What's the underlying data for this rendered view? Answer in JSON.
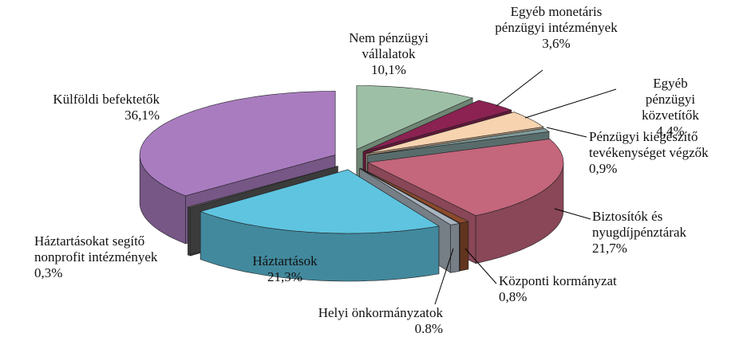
{
  "chart_data": {
    "type": "pie3d",
    "categories": [
      "Nem pénzügyi\nvállalatok",
      "Egyéb monetáris\npénzügyi intézmények",
      "Egyéb pénzügyi\nközvetítők",
      "Pénzügyi kiegészítő\ntevékenységet végzők",
      "Biztosítók és\nnyugdíjpénztárak",
      "Központi kormányzat",
      "Helyi önkormányzatok",
      "Háztartások",
      "Háztartásokat segítő\nnonprofit intézmények",
      "Külföldi befektetők"
    ],
    "values": [
      10.1,
      3.6,
      4.4,
      0.9,
      21.7,
      0.8,
      0.8,
      21.3,
      0.3,
      36.1
    ],
    "value_labels": [
      "10,1%",
      "3,6%",
      "4,4%",
      "0,9%",
      "21,7%",
      "0,8%",
      "0.8%",
      "21,3%",
      "0,3%",
      "36,1%"
    ],
    "colors": [
      "#9dbfa6",
      "#8b2252",
      "#f7d3b0",
      "#7f9a9a",
      "#c4667c",
      "#8b4a2b",
      "#a9b4bf",
      "#5ec4e0",
      "#555555",
      "#a97cc0"
    ]
  }
}
